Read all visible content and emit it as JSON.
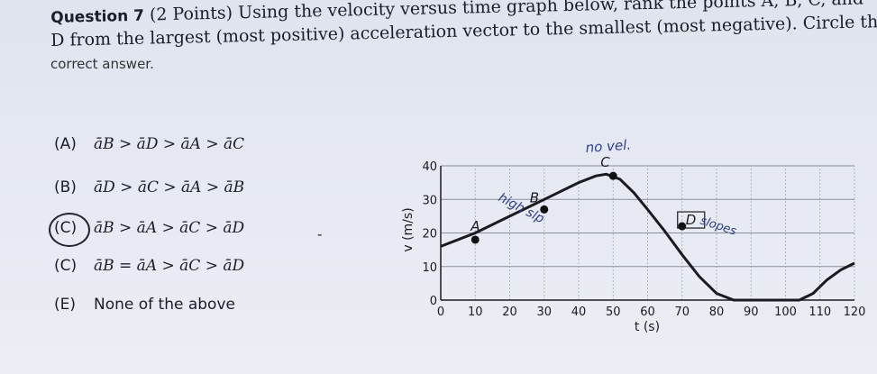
{
  "question": {
    "label": "Question 7",
    "line1_rest": "(2 Points) Using the velocity versus time graph below, rank the points A, B, C, and",
    "line2": "D from the largest (most positive) acceleration vector to the smallest (most negative). Circle the",
    "line3": "correct answer."
  },
  "options": [
    {
      "letter": "(A)",
      "expr": "āB > āD > āA > āC"
    },
    {
      "letter": "(B)",
      "expr": "āD > āC > āA > āB"
    },
    {
      "letter": "(C)",
      "expr": "āB > āA > āC > āD",
      "circled": true
    },
    {
      "letter": "(C)",
      "expr": "āB = āA > āC > āD"
    },
    {
      "letter": "(E)",
      "expr": "None of the above"
    }
  ],
  "chart_data": {
    "type": "line",
    "title": "",
    "xlabel": "t (s)",
    "ylabel": "v (m/s)",
    "xlim": [
      0,
      120
    ],
    "ylim": [
      0,
      40
    ],
    "x_ticks": [
      0,
      10,
      20,
      30,
      40,
      50,
      60,
      70,
      80,
      90,
      100,
      110,
      120
    ],
    "y_ticks": [
      0,
      10,
      20,
      30,
      40
    ],
    "grid": true,
    "series": [
      {
        "x": [
          0,
          10,
          20,
          30,
          40,
          45,
          48,
          52,
          56,
          60,
          65,
          70,
          75,
          80,
          85,
          90,
          95,
          100,
          104,
          108,
          112,
          116,
          120
        ],
        "y": [
          16,
          20,
          25,
          30,
          35,
          37,
          37.5,
          36,
          32,
          27,
          20.5,
          13.5,
          7,
          2,
          0,
          0,
          0,
          0,
          0,
          2,
          6,
          9,
          11
        ]
      }
    ],
    "points": [
      {
        "label": "A",
        "x": 10,
        "y": 18
      },
      {
        "label": "B",
        "x": 30,
        "y": 27
      },
      {
        "label": "C",
        "x": 50,
        "y": 37
      },
      {
        "label": "D",
        "x": 70,
        "y": 22
      }
    ]
  },
  "handwriting": {
    "no_vel": "no vel.",
    "high_slope": "high slp",
    "d_slopes": "slopes"
  },
  "dash_mark": "-"
}
